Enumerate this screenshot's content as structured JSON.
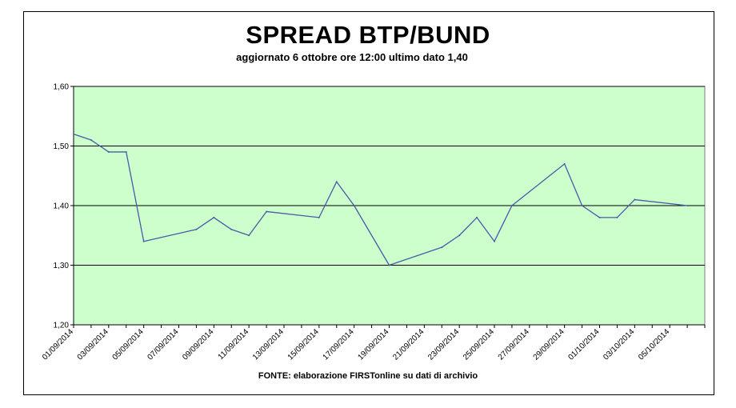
{
  "chart_data": {
    "type": "line",
    "title": "SPREAD BTP/BUND",
    "subtitle": "aggiornato 6 ottobre ore 12:00 ultimo dato 1,40",
    "source": "FONTE:  elaborazione FIRSTonline su dati di archivio",
    "xlabel": "",
    "ylabel": "",
    "ylim": [
      1.2,
      1.6
    ],
    "yticks": [
      "1,20",
      "1,30",
      "1,40",
      "1,50",
      "1,60"
    ],
    "xlim": [
      "2014-09-01",
      "2014-10-07"
    ],
    "xticks": [
      "01/09/2014",
      "03/09/2014",
      "05/09/2014",
      "07/09/2014",
      "09/09/2014",
      "11/09/2014",
      "13/09/2014",
      "15/09/2014",
      "17/09/2014",
      "19/09/2014",
      "21/09/2014",
      "23/09/2014",
      "25/09/2014",
      "27/09/2014",
      "29/09/2014",
      "01/10/2014",
      "03/10/2014",
      "05/10/2014"
    ],
    "grid": "horizontal",
    "legend": "none",
    "colors": {
      "plot_background": "#ccffcc",
      "line": "#4a5aa8",
      "gridline": "#000000"
    },
    "series": [
      {
        "x": [
          "2014-09-01",
          "2014-09-02",
          "2014-09-03",
          "2014-09-04",
          "2014-09-05",
          "2014-09-08",
          "2014-09-09",
          "2014-09-10",
          "2014-09-11",
          "2014-09-12",
          "2014-09-15",
          "2014-09-16",
          "2014-09-17",
          "2014-09-19",
          "2014-09-22",
          "2014-09-23",
          "2014-09-24",
          "2014-09-25",
          "2014-09-26",
          "2014-09-29",
          "2014-09-30",
          "2014-10-01",
          "2014-10-02",
          "2014-10-03",
          "2014-10-06"
        ],
        "values": [
          1.52,
          1.51,
          1.49,
          1.49,
          1.34,
          1.36,
          1.38,
          1.36,
          1.35,
          1.39,
          1.38,
          1.44,
          1.4,
          1.3,
          1.33,
          1.35,
          1.38,
          1.34,
          1.4,
          1.47,
          1.4,
          1.38,
          1.38,
          1.41,
          1.4
        ]
      }
    ]
  }
}
